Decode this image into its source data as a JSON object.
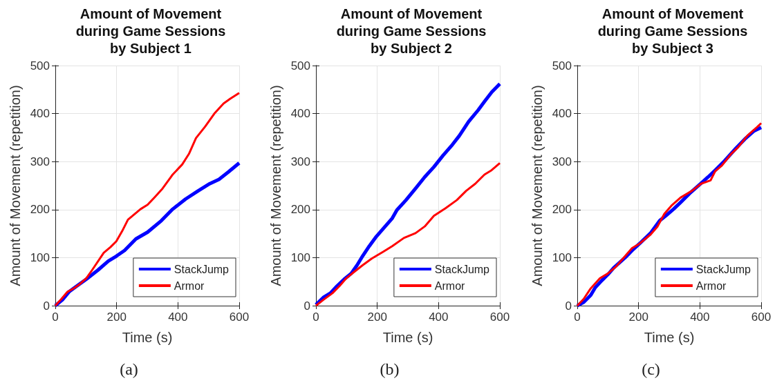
{
  "chart_data": [
    {
      "type": "line",
      "title": "Amount of Movement\nduring Game Sessions\nby Subject 1",
      "xlabel": "Time (s)",
      "ylabel": "Amount of Movement (repetition)",
      "annotations": [
        "(a)"
      ],
      "xlim": [
        0,
        600
      ],
      "xticks": [
        0,
        200,
        400,
        600
      ],
      "ylim": [
        0,
        500
      ],
      "yticks": [
        0,
        100,
        200,
        300,
        400,
        500
      ],
      "grid": true,
      "legend": "bottom right",
      "line_style": "solid",
      "marker": "none",
      "series": [
        {
          "name": "StackJump",
          "color": "#0000ff",
          "x": [
            0,
            23,
            45,
            75,
            101,
            139,
            173,
            199,
            226,
            263,
            301,
            346,
            383,
            425,
            466,
            504,
            534,
            564,
            600
          ],
          "values": [
            0,
            12,
            29,
            43,
            55,
            74,
            93,
            103,
            115,
            139,
            153,
            177,
            201,
            222,
            239,
            254,
            263,
            278,
            297
          ]
        },
        {
          "name": "Armor",
          "color": "#ff0000",
          "x": [
            0,
            20,
            40,
            60,
            80,
            101,
            120,
            158,
            180,
            199,
            218,
            237,
            278,
            301,
            323,
            350,
            383,
            414,
            436,
            459,
            489,
            519,
            549,
            571,
            600
          ],
          "values": [
            0,
            14,
            29,
            36,
            45,
            57,
            74,
            110,
            122,
            134,
            155,
            179,
            201,
            210,
            225,
            244,
            273,
            294,
            316,
            349,
            373,
            400,
            421,
            431,
            443
          ]
        }
      ]
    },
    {
      "type": "line",
      "title": "Amount of Movement\nduring Game Sessions\nby Subject 2",
      "xlabel": "Time (s)",
      "ylabel": "Amount of Movement (repetition)",
      "annotations": [
        "(b)"
      ],
      "xlim": [
        0,
        600
      ],
      "xticks": [
        0,
        200,
        400,
        600
      ],
      "ylim": [
        0,
        500
      ],
      "yticks": [
        0,
        100,
        200,
        300,
        400,
        500
      ],
      "grid": true,
      "legend": "bottom right",
      "line_style": "solid",
      "marker": "none",
      "series": [
        {
          "name": "StackJump",
          "color": "#0000ff",
          "x": [
            0,
            24,
            47,
            69,
            92,
            115,
            134,
            152,
            174,
            197,
            219,
            249,
            264,
            294,
            325,
            355,
            385,
            415,
            445,
            468,
            498,
            529,
            551,
            574,
            600
          ],
          "values": [
            2,
            17,
            26,
            41,
            55,
            67,
            84,
            103,
            124,
            144,
            160,
            182,
            199,
            220,
            244,
            268,
            289,
            313,
            335,
            354,
            383,
            407,
            426,
            445,
            462
          ]
        },
        {
          "name": "Armor",
          "color": "#ff0000",
          "x": [
            0,
            24,
            54,
            77,
            99,
            122,
            152,
            182,
            219,
            249,
            287,
            325,
            355,
            385,
            423,
            460,
            490,
            520,
            550,
            573,
            600
          ],
          "values": [
            0,
            12,
            26,
            41,
            57,
            69,
            84,
            98,
            112,
            124,
            141,
            151,
            165,
            187,
            203,
            220,
            239,
            254,
            273,
            282,
            297
          ]
        }
      ]
    },
    {
      "type": "line",
      "title": "Amount of Movement\nduring Game Sessions\nby Subject 3",
      "xlabel": "Time (s)",
      "ylabel": "Amount of Movement (repetition)",
      "annotations": [
        "(c)"
      ],
      "xlim": [
        0,
        600
      ],
      "xticks": [
        0,
        200,
        400,
        600
      ],
      "ylim": [
        0,
        500
      ],
      "yticks": [
        0,
        100,
        200,
        300,
        400,
        500
      ],
      "grid": true,
      "legend": "bottom right",
      "line_style": "solid",
      "marker": "none",
      "series": [
        {
          "name": "StackJump",
          "color": "#0000ff",
          "x": [
            0,
            21,
            44,
            59,
            81,
            100,
            119,
            156,
            179,
            203,
            239,
            269,
            292,
            314,
            337,
            367,
            397,
            427,
            450,
            480,
            518,
            547,
            577,
            600
          ],
          "values": [
            0,
            7,
            22,
            38,
            53,
            65,
            79,
            100,
            115,
            129,
            151,
            177,
            189,
            201,
            215,
            234,
            251,
            268,
            282,
            301,
            328,
            347,
            364,
            371
          ]
        },
        {
          "name": "Armor",
          "color": "#ff0000",
          "x": [
            0,
            21,
            44,
            74,
            100,
            126,
            156,
            179,
            203,
            239,
            262,
            284,
            307,
            337,
            374,
            404,
            435,
            450,
            472,
            502,
            525,
            555,
            585,
            600
          ],
          "values": [
            0,
            14,
            36,
            57,
            67,
            81,
            103,
            120,
            129,
            148,
            165,
            191,
            208,
            225,
            239,
            254,
            261,
            280,
            292,
            316,
            330,
            354,
            371,
            380
          ]
        }
      ]
    }
  ]
}
